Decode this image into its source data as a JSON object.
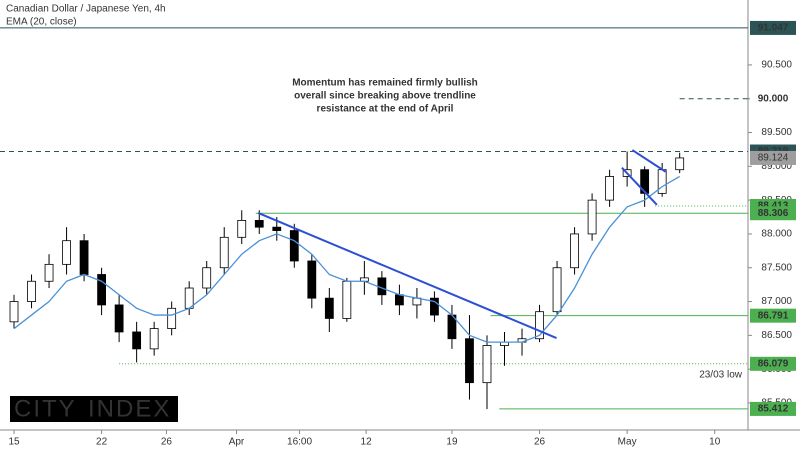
{
  "chart_data": {
    "type": "candlestick",
    "title": "Canadian Dollar / Japanese Yen, 4h",
    "xlim": [
      -0.8,
      41.9
    ],
    "ylim": [
      85.1,
      91.46
    ],
    "xticks": [
      {
        "value": 0,
        "label": "15"
      },
      {
        "value": 5,
        "label": "22"
      },
      {
        "value": 8.7,
        "label": "26"
      },
      {
        "value": 12.7,
        "label": "Apr"
      },
      {
        "value": 16.3,
        "label": "16:00"
      },
      {
        "value": 20.1,
        "label": "12"
      },
      {
        "value": 25,
        "label": "19"
      },
      {
        "value": 30,
        "label": "26"
      },
      {
        "value": 35,
        "label": "May"
      },
      {
        "value": 40,
        "label": "10"
      }
    ],
    "yticks": [
      {
        "value": 85.5,
        "label": "85.500"
      },
      {
        "value": 86,
        "label": "86.000"
      },
      {
        "value": 86.5,
        "label": "86.500"
      },
      {
        "value": 87,
        "label": "87.000"
      },
      {
        "value": 87.5,
        "label": "87.500"
      },
      {
        "value": 88,
        "label": "88.000"
      },
      {
        "value": 88.5,
        "label": "88.500"
      },
      {
        "value": 89,
        "label": "89.000"
      },
      {
        "value": 89.5,
        "label": "89.500"
      },
      {
        "value": 90,
        "label": "90.000"
      },
      {
        "value": 90.5,
        "label": "90.500"
      }
    ],
    "up_color": "#ffffff",
    "down_color": "#000000",
    "last_color": "#9e9e9e",
    "candles": {
      "x": [
        0,
        1,
        2,
        3,
        4,
        5,
        6,
        7,
        8,
        9,
        10,
        11,
        12,
        13,
        14,
        15,
        16,
        17,
        18,
        19,
        20,
        21,
        22,
        23,
        24,
        25,
        26,
        27,
        28,
        29,
        30,
        31,
        32,
        33,
        34,
        35,
        36,
        37,
        38
      ],
      "open": [
        86.7,
        87.0,
        87.3,
        87.55,
        87.9,
        87.4,
        86.95,
        86.55,
        86.3,
        86.6,
        86.9,
        87.2,
        87.5,
        87.95,
        88.2,
        88.1,
        88.05,
        87.6,
        87.05,
        86.75,
        87.3,
        87.35,
        87.1,
        86.95,
        87.05,
        86.8,
        86.45,
        85.8,
        86.35,
        86.4,
        86.45,
        86.85,
        87.5,
        88.0,
        88.5,
        88.85,
        88.95,
        88.6,
        88.95
      ],
      "high": [
        87.1,
        87.4,
        87.7,
        88.1,
        88.0,
        87.5,
        87.1,
        86.7,
        86.7,
        87.0,
        87.3,
        87.6,
        88.1,
        88.35,
        88.35,
        88.25,
        88.15,
        87.7,
        87.2,
        87.35,
        87.6,
        87.45,
        87.25,
        87.2,
        87.15,
        86.95,
        86.8,
        86.5,
        86.55,
        86.6,
        86.95,
        87.6,
        88.1,
        88.6,
        88.95,
        89.22,
        89.0,
        89.05,
        89.2
      ],
      "low": [
        86.6,
        86.9,
        87.2,
        87.4,
        87.3,
        86.8,
        86.4,
        86.1,
        86.2,
        86.5,
        86.8,
        87.1,
        87.4,
        87.85,
        88.0,
        87.9,
        87.5,
        86.9,
        86.55,
        86.7,
        87.1,
        86.95,
        86.8,
        86.75,
        86.7,
        86.3,
        85.55,
        85.41,
        86.05,
        86.2,
        86.4,
        86.8,
        87.4,
        87.9,
        88.4,
        88.7,
        88.4,
        88.55,
        88.9
      ],
      "close": [
        87.0,
        87.3,
        87.55,
        87.9,
        87.4,
        86.95,
        86.55,
        86.3,
        86.6,
        86.9,
        87.2,
        87.5,
        87.95,
        88.2,
        88.1,
        88.05,
        87.6,
        87.05,
        86.75,
        87.3,
        87.35,
        87.1,
        86.95,
        87.05,
        86.8,
        86.45,
        85.8,
        86.35,
        86.4,
        86.45,
        86.85,
        87.5,
        88.0,
        88.5,
        88.85,
        88.95,
        88.6,
        88.95,
        89.124
      ]
    },
    "ema": {
      "name": "EMA (20, close)",
      "color": "#4a90d9",
      "values": [
        86.6,
        86.8,
        87.0,
        87.3,
        87.4,
        87.3,
        87.1,
        86.9,
        86.8,
        86.8,
        86.9,
        87.1,
        87.4,
        87.7,
        87.9,
        88.0,
        87.9,
        87.7,
        87.4,
        87.3,
        87.3,
        87.2,
        87.1,
        87.05,
        87.0,
        86.8,
        86.5,
        86.4,
        86.4,
        86.4,
        86.5,
        86.8,
        87.2,
        87.7,
        88.1,
        88.4,
        88.5,
        88.7,
        88.85
      ]
    },
    "trendlines": [
      {
        "color": "#2d4fd6",
        "x": [
          13.94,
          30.97
        ],
        "y": [
          88.31,
          86.46
        ]
      },
      {
        "color": "#2d4fd6",
        "x": [
          35.3,
          37.2
        ],
        "y": [
          89.24,
          88.92
        ]
      },
      {
        "color": "#2d4fd6",
        "x": [
          34.7,
          36.7
        ],
        "y": [
          88.98,
          88.43
        ]
      }
    ],
    "levels": [
      {
        "value": 91.047,
        "label": "91.047",
        "style": "solid",
        "color": "#2b5457",
        "box": "#2b5457",
        "from": -0.8
      },
      {
        "value": 90,
        "label": "90.000",
        "style": "dashed",
        "color": "#2b5457",
        "box": "#ffffff",
        "from": 38
      },
      {
        "value": 89.219,
        "label": "89.219",
        "style": "dashed",
        "color": "#2b5457",
        "box": "#2b5457",
        "from": -0.8
      },
      {
        "value": 88.413,
        "label": "88.413",
        "style": "dotted",
        "color": "#4caf50",
        "box": "#4caf50",
        "from": 36.6
      },
      {
        "value": 88.306,
        "label": "88.306",
        "style": "solid",
        "color": "#4caf50",
        "box": "#4caf50",
        "from": 13.8
      },
      {
        "value": 86.791,
        "label": "86.791",
        "style": "solid",
        "color": "#4caf50",
        "box": "#4caf50",
        "from": 27.2
      },
      {
        "value": 86.079,
        "label": "86.079",
        "style": "dotted",
        "color": "#4caf50",
        "box": "#4caf50",
        "from": 6,
        "note": "23/03 low"
      },
      {
        "value": 85.412,
        "label": "85.412",
        "style": "solid",
        "color": "#4caf50",
        "box": "#4caf50",
        "from": 27.7
      }
    ],
    "annotation": {
      "color": "#1f3ee0",
      "lines": [
        "Momentum has remained firmly bullish",
        "overall since breaking above trendline",
        "resistance at the end of April"
      ]
    },
    "logo": {
      "left": "CITY",
      "right": "INDEX",
      "left_color": "#ffffff",
      "right_color": "#f5c400"
    }
  }
}
